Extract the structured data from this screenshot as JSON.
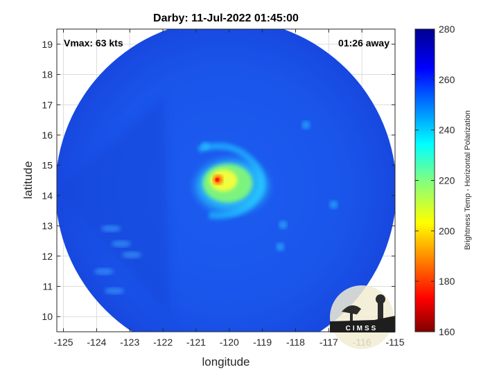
{
  "chart_data": {
    "type": "heatmap",
    "title": "Darby: 11-Jul-2022 01:45:00",
    "xlabel": "longitude",
    "ylabel": "latitude",
    "xlim": [
      -125.2,
      -115
    ],
    "ylim": [
      9.5,
      19.5
    ],
    "xticks": [
      "-125",
      "-124",
      "-123",
      "-122",
      "-121",
      "-120",
      "-119",
      "-118",
      "-117",
      "-116",
      "-115"
    ],
    "yticks": [
      "10",
      "11",
      "12",
      "13",
      "14",
      "15",
      "16",
      "17",
      "18",
      "19"
    ],
    "grid": true,
    "annotations": {
      "vmax": "Vmax: 63 kts",
      "away": "01:26 away"
    },
    "colorbar": {
      "label": "Brightness Temp - Horizontal Polarization",
      "min": 160,
      "max": 280,
      "ticks": [
        "160",
        "180",
        "200",
        "220",
        "240",
        "260",
        "280"
      ],
      "colormap": "jet"
    },
    "storm_center": {
      "lon": -120.3,
      "lat": 14.5
    },
    "swath_center": {
      "lon": -120.1,
      "lat": 14.2
    },
    "background_temp": 262
  },
  "logo": {
    "text": "CIMSS"
  },
  "colors": {
    "cold": "#800000",
    "warm": "#00008f",
    "background_blue": "#1a4fe6"
  }
}
